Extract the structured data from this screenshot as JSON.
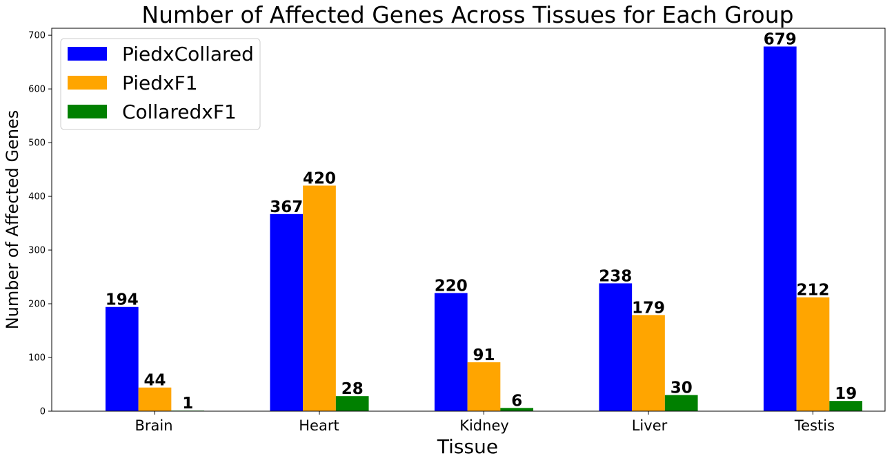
{
  "chart_data": {
    "type": "bar",
    "title": "Number of Affected Genes Across Tissues for Each Group",
    "xlabel": "Tissue",
    "ylabel": "Number of Affected Genes",
    "categories": [
      "Brain",
      "Heart",
      "Kidney",
      "Liver",
      "Testis"
    ],
    "series": [
      {
        "name": "PiedxCollared",
        "color": "#0000ff",
        "values": [
          194,
          367,
          220,
          238,
          679
        ]
      },
      {
        "name": "PiedxF1",
        "color": "#ffa500",
        "values": [
          44,
          420,
          91,
          179,
          212
        ]
      },
      {
        "name": "CollaredxF1",
        "color": "#008000",
        "values": [
          1,
          28,
          6,
          30,
          19
        ]
      }
    ],
    "ylim": [
      0,
      713
    ],
    "yticks": [
      0,
      100,
      200,
      300,
      400,
      500,
      600,
      700
    ],
    "grid": false,
    "legend_position": "top-left",
    "data_labels": true
  }
}
